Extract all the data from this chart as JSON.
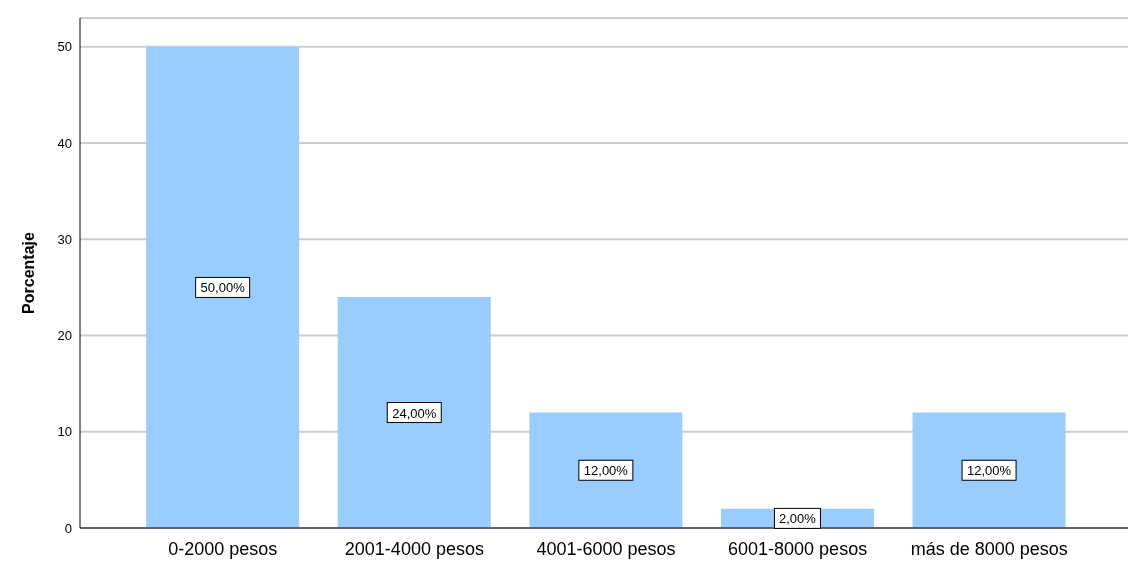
{
  "chart_data": {
    "type": "bar",
    "ylabel": "Porcentaje",
    "categories": [
      "0-2000 pesos",
      "2001-4000 pesos",
      "4001-6000 pesos",
      "6001-8000 pesos",
      "más de 8000 pesos"
    ],
    "values": [
      50,
      24,
      12,
      2,
      12
    ],
    "value_labels": [
      "50,00%",
      "24,00%",
      "12,00%",
      "2,00%",
      "12,00%"
    ],
    "color": "#99ccff",
    "ylim": [
      0,
      53
    ],
    "yticks": [
      0,
      10,
      20,
      30,
      40,
      50
    ],
    "grid": "y"
  }
}
